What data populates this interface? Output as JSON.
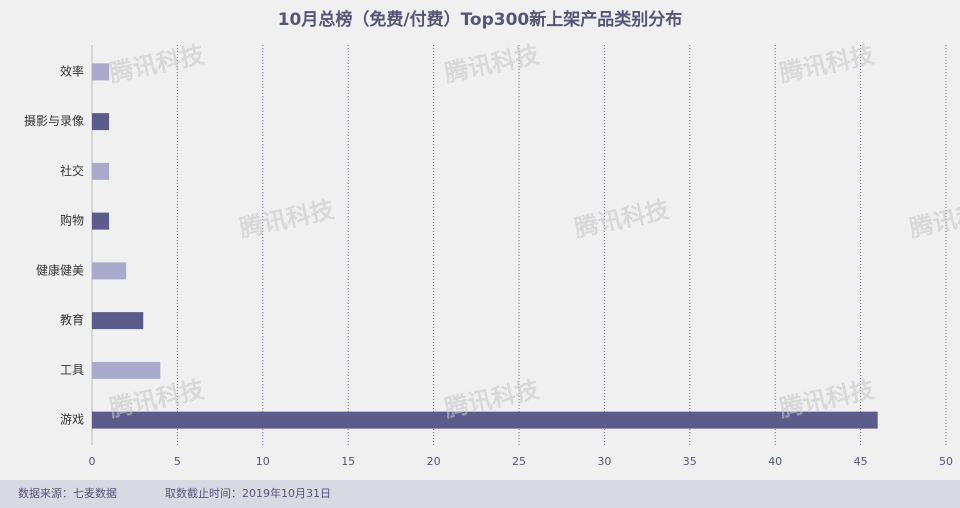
{
  "chart_data": {
    "type": "hbar",
    "title": "10月总榜（免费/付费）Top300新上架产品类别分布",
    "categories": [
      "效率",
      "摄影与录像",
      "社交",
      "购物",
      "健康健美",
      "教育",
      "工具",
      "游戏"
    ],
    "values": [
      1,
      1,
      1,
      1,
      2,
      3,
      4,
      46
    ],
    "colors": [
      "#a9aacb",
      "#5b5b8c",
      "#a9aacb",
      "#5b5b8c",
      "#a9aacb",
      "#5b5b8c",
      "#a9aacb",
      "#5b5b8c"
    ],
    "xlim": [
      0,
      50
    ],
    "xticks": [
      0,
      5,
      10,
      15,
      20,
      25,
      30,
      35,
      40,
      45,
      50
    ],
    "grid": true,
    "watermark": "腾讯科技",
    "source": "数据来源：七麦数据",
    "cutoff": "取数截止时间：2019年10月31日"
  }
}
